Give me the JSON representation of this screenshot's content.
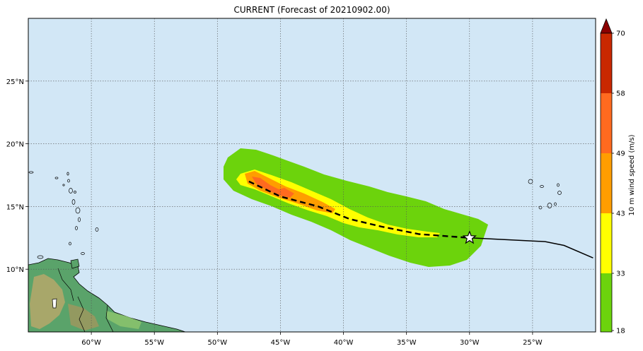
{
  "title": "CURRENT (Forecast of 20210902.00)",
  "colors": {
    "ocean": "#d2e7f6",
    "land_green": "#5aa36a",
    "wind_18_33": "#6cd30c",
    "wind_33_43": "#ffff00",
    "wind_43_49": "#ff9d00",
    "wind_49_58": "#ff6a1f",
    "wind_58_70": "#c92800",
    "wind_70_plus": "#8b0000"
  },
  "map": {
    "lon_ticks": [
      {
        "value": -60,
        "label": "60°W"
      },
      {
        "value": -55,
        "label": "55°W"
      },
      {
        "value": -50,
        "label": "50°W"
      },
      {
        "value": -45,
        "label": "45°W"
      },
      {
        "value": -40,
        "label": "40°W"
      },
      {
        "value": -35,
        "label": "35°W"
      },
      {
        "value": -30,
        "label": "30°W"
      },
      {
        "value": -25,
        "label": "25°W"
      }
    ],
    "lat_ticks": [
      {
        "value": 25,
        "label": "25°N"
      },
      {
        "value": 20,
        "label": "20°N"
      },
      {
        "value": 15,
        "label": "15°N"
      },
      {
        "value": 10,
        "label": "10°N"
      }
    ],
    "lon_range": [
      -65,
      -20
    ],
    "lat_range": [
      5,
      30
    ],
    "track_past": [
      [
        -30,
        12.5
      ],
      [
        -24,
        12.2
      ],
      [
        -22.5,
        11.9
      ],
      [
        -20.2,
        10.9
      ]
    ],
    "track_forecast": [
      [
        -47.5,
        17.0
      ],
      [
        -45,
        15.8
      ],
      [
        -42,
        15.0
      ],
      [
        -39.5,
        14.0
      ],
      [
        -37,
        13.4
      ],
      [
        -34,
        12.8
      ],
      [
        -30,
        12.5
      ]
    ],
    "current_position": {
      "lon": -30,
      "lat": 12.5
    }
  },
  "colorbar": {
    "label": "10 m wind speed (m/s)",
    "levels": [
      "18",
      "33",
      "43",
      "49",
      "58",
      "70"
    ]
  }
}
